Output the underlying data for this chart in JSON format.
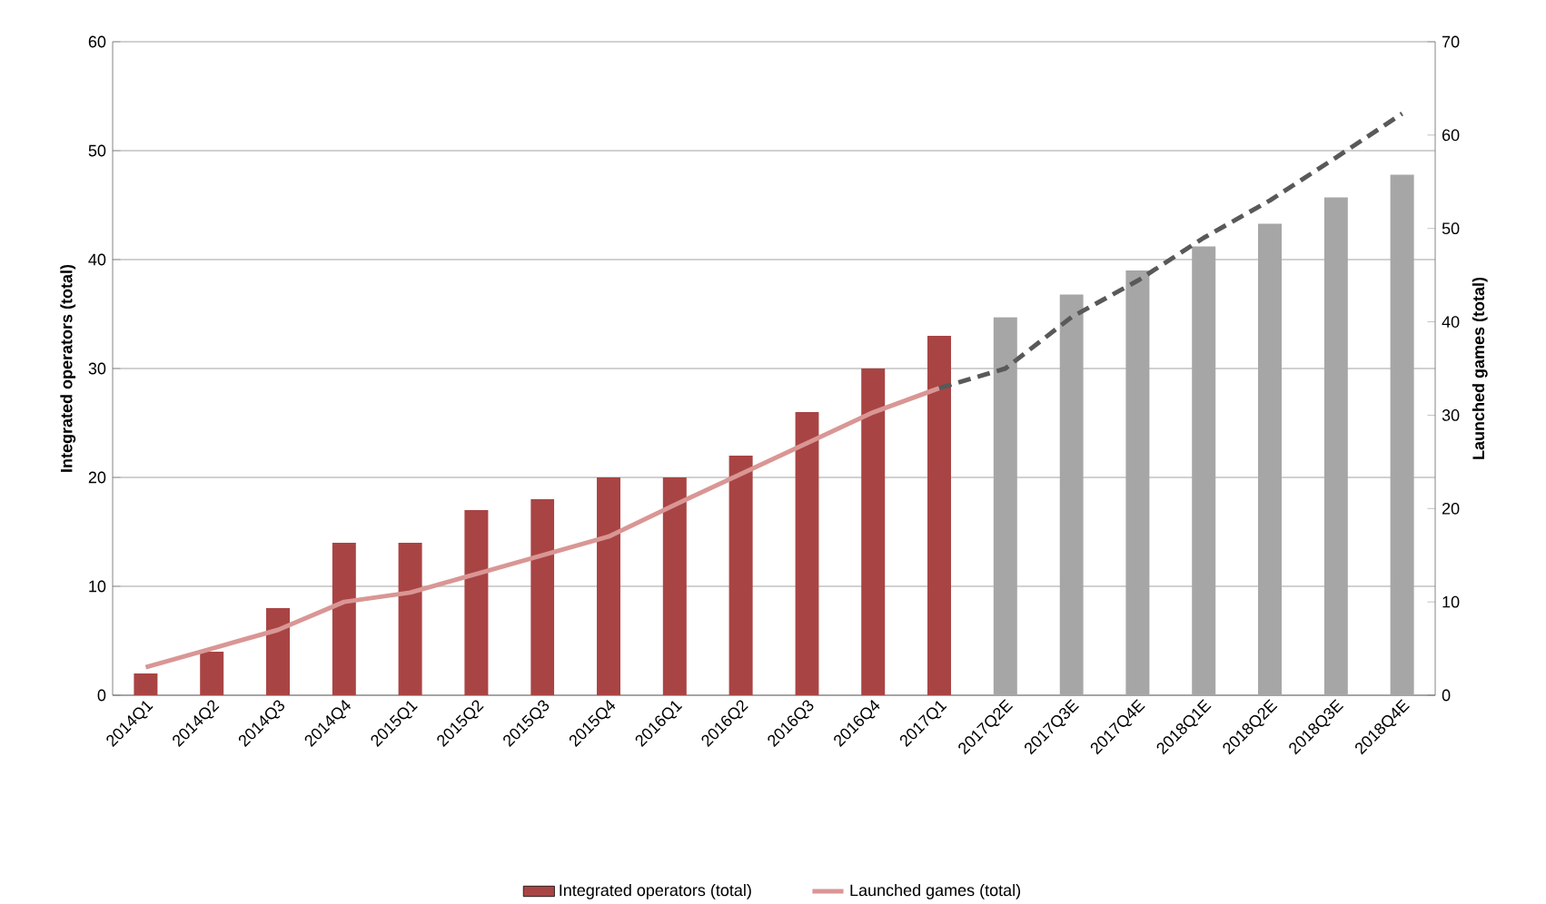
{
  "chart_data": {
    "type": "bar",
    "categories": [
      "2014Q1",
      "2014Q2",
      "2014Q3",
      "2014Q4",
      "2015Q1",
      "2015Q2",
      "2015Q3",
      "2015Q4",
      "2016Q1",
      "2016Q2",
      "2016Q3",
      "2016Q4",
      "2017Q1",
      "2017Q2E",
      "2017Q3E",
      "2017Q4E",
      "2018Q1E",
      "2018Q2E",
      "2018Q3E",
      "2018Q4E"
    ],
    "series": [
      {
        "name": "Integrated operators (total)",
        "colors": [
          "#a94444",
          "#a94444",
          "#a94444",
          "#a94444",
          "#a94444",
          "#a94444",
          "#a94444",
          "#a94444",
          "#a94444",
          "#a94444",
          "#a94444",
          "#a94444",
          "#a94444",
          "#a6a6a6",
          "#a6a6a6",
          "#a6a6a6",
          "#a6a6a6",
          "#a6a6a6",
          "#a6a6a6",
          "#a6a6a6"
        ],
        "values": [
          2,
          4,
          8,
          14,
          14,
          17,
          18,
          20,
          20,
          22,
          26,
          30,
          33,
          34.7,
          36.8,
          39,
          41.2,
          43.3,
          45.7,
          47.8
        ]
      },
      {
        "name": "Launched games (total)",
        "type": "line",
        "axis": "y2",
        "color": "#d99694",
        "line_style": "solid",
        "values": [
          3,
          5,
          7,
          10,
          11,
          13,
          15,
          17,
          20.4,
          23.7,
          27,
          30.3,
          32.9,
          null,
          null,
          null,
          null,
          null,
          null,
          null
        ]
      },
      {
        "type": "line",
        "axis": "y2",
        "color": "#595959",
        "line_style": "dashed",
        "values": [
          null,
          null,
          null,
          null,
          null,
          null,
          null,
          null,
          null,
          null,
          null,
          null,
          32.9,
          35,
          40.5,
          44.4,
          49,
          53,
          57.6,
          62.3
        ]
      }
    ],
    "ylabel": "Integrated operators (total)",
    "y2label": "Launched games (total)",
    "ylim": [
      0,
      60
    ],
    "yticks": [
      0,
      10,
      20,
      30,
      40,
      50,
      60
    ],
    "y2lim": [
      0,
      70
    ],
    "y2ticks": [
      0,
      10,
      20,
      30,
      40,
      50,
      60,
      70
    ],
    "grid": "y",
    "legend": "bottom",
    "marker": "none"
  }
}
